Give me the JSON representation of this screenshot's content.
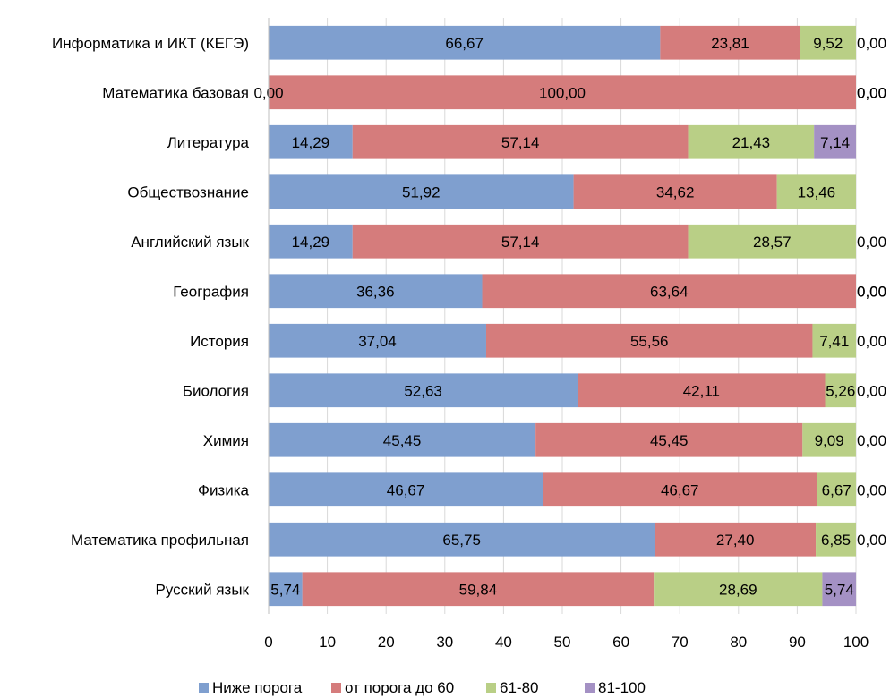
{
  "chart_data": {
    "type": "bar",
    "orientation": "horizontal",
    "stacked": true,
    "categories": [
      "Информатика и ИКТ (КЕГЭ)",
      "Математика базовая",
      "Литература",
      "Обществознание",
      "Английский язык",
      "География",
      "История",
      "Биология",
      "Химия",
      "Физика",
      "Математика профильная",
      "Русский язык"
    ],
    "series": [
      {
        "name": "Ниже порога",
        "color": "#7f9fcf",
        "values": [
          66.67,
          0,
          14.29,
          51.92,
          14.29,
          36.36,
          37.04,
          52.63,
          45.45,
          46.67,
          65.75,
          5.74
        ],
        "labels": [
          "66,67",
          "0,00",
          "14,29",
          "51,92",
          "14,29",
          "36,36",
          "37,04",
          "52,63",
          "45,45",
          "46,67",
          "65,75",
          "5,74"
        ]
      },
      {
        "name": "от порога до 60",
        "color": "#d57c7c",
        "values": [
          23.81,
          100,
          57.14,
          34.62,
          57.14,
          63.64,
          55.56,
          42.11,
          45.45,
          46.67,
          27.4,
          59.84
        ],
        "labels": [
          "23,81",
          "100,00",
          "57,14",
          "34,62",
          "57,14",
          "63,64",
          "55,56",
          "42,11",
          "45,45",
          "46,67",
          "27,40",
          "59,84"
        ]
      },
      {
        "name": "61-80",
        "color": "#b9cf86",
        "values": [
          9.52,
          0,
          21.43,
          13.46,
          28.57,
          0,
          7.41,
          5.26,
          9.09,
          6.67,
          6.85,
          28.69
        ],
        "labels": [
          "9,52",
          "0,00",
          "21,43",
          "13,46",
          "28,57",
          "0,00",
          "7,41",
          "5,26",
          "9,09",
          "6,67",
          "6,85",
          "28,69"
        ]
      },
      {
        "name": "81-100",
        "color": "#a491c4",
        "values": [
          0,
          0,
          7.14,
          0,
          0,
          0,
          0,
          0,
          0,
          0,
          0,
          5.74
        ],
        "labels": [
          "0,00",
          "0,00",
          "7,14",
          "",
          "0,00",
          "0,00",
          "0,00",
          "0,00",
          "0,00",
          "0,00",
          "0,00",
          "5,74"
        ]
      }
    ],
    "xlim": [
      0,
      100
    ],
    "xticks": [
      "0",
      "10",
      "20",
      "30",
      "40",
      "50",
      "60",
      "70",
      "80",
      "90",
      "100"
    ],
    "grid": true,
    "legend_position": "bottom"
  }
}
